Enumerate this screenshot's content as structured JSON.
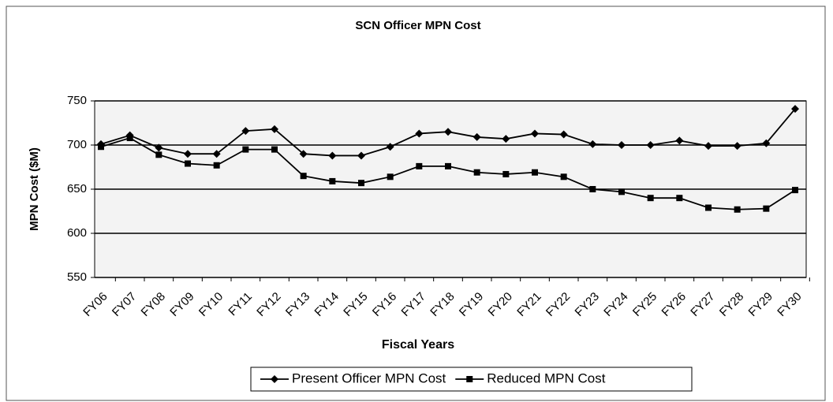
{
  "chart_data": {
    "type": "line",
    "title": "SCN Officer MPN Cost",
    "x_label": "Fiscal Years",
    "y_label": "MPN Cost ($M)",
    "categories": [
      "FY06",
      "FY07",
      "FY08",
      "FY09",
      "FY10",
      "FY11",
      "FY12",
      "FY13",
      "FY14",
      "FY15",
      "FY16",
      "FY17",
      "FY18",
      "FY19",
      "FY20",
      "FY21",
      "FY22",
      "FY23",
      "FY24",
      "FY25",
      "FY26",
      "FY27",
      "FY28",
      "FY29",
      "FY30"
    ],
    "series": [
      {
        "name": "Present Officer MPN Cost",
        "color": "#000000",
        "marker": "diamond",
        "values": [
          701,
          711,
          697,
          690,
          690,
          716,
          718,
          690,
          688,
          688,
          698,
          713,
          715,
          709,
          707,
          713,
          712,
          701,
          700,
          700,
          705,
          699,
          699,
          702,
          741
        ]
      },
      {
        "name": "Reduced MPN Cost",
        "color": "#000000",
        "marker": "square",
        "values": [
          698,
          708,
          689,
          679,
          677,
          695,
          695,
          665,
          659,
          657,
          664,
          676,
          676,
          669,
          667,
          669,
          664,
          650,
          647,
          640,
          640,
          629,
          627,
          628,
          649
        ]
      }
    ],
    "ylim": [
      550,
      750
    ],
    "yticks": [
      550,
      600,
      650,
      700,
      750
    ],
    "grid": true,
    "legend": "bottom"
  }
}
